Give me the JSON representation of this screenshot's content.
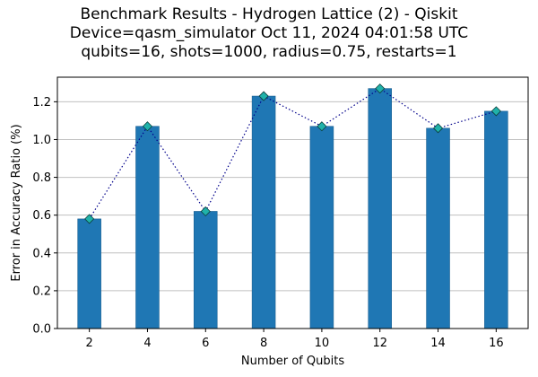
{
  "chart_data": {
    "type": "bar",
    "title_lines": [
      "Benchmark Results - Hydrogen Lattice (2) - Qiskit",
      "Device=qasm_simulator  Oct 11, 2024 04:01:58 UTC",
      "qubits=16, shots=1000, radius=0.75, restarts=1"
    ],
    "xlabel": "Number of Qubits",
    "ylabel": "Error in Accuracy Ratio (%)",
    "categories": [
      "2",
      "4",
      "6",
      "8",
      "10",
      "12",
      "14",
      "16"
    ],
    "x": [
      2,
      4,
      6,
      8,
      10,
      12,
      14,
      16
    ],
    "xlim": [
      0.9,
      17.1
    ],
    "ylim": [
      0,
      1.33
    ],
    "y_ticks": [
      "0.0",
      "0.2",
      "0.4",
      "0.6",
      "0.8",
      "1.0",
      "1.2"
    ],
    "grid": "horizontal",
    "series": [
      {
        "values": [
          0.58,
          1.07,
          0.62,
          1.23,
          1.07,
          1.27,
          1.06,
          1.15
        ],
        "kind": "bar"
      },
      {
        "values": [
          0.58,
          1.07,
          0.62,
          1.23,
          1.07,
          1.27,
          1.06,
          1.15
        ],
        "kind": "line-markers"
      }
    ],
    "colors": {
      "bar": "#1f77b4",
      "bar_edge": "#1a5f91",
      "line": "#00008b",
      "marker_fill": "#20b2aa",
      "marker_edge": "#0b3d3a",
      "grid": "#c0c0c0"
    }
  }
}
